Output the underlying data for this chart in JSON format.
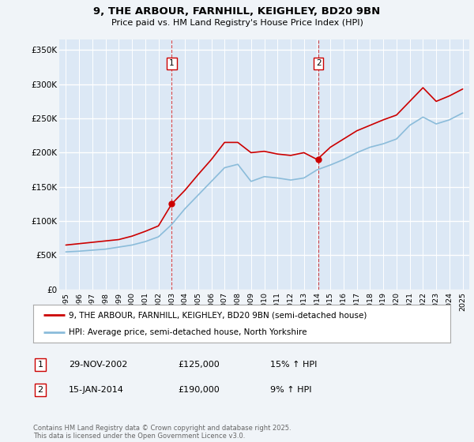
{
  "title_line1": "9, THE ARBOUR, FARNHILL, KEIGHLEY, BD20 9BN",
  "title_line2": "Price paid vs. HM Land Registry's House Price Index (HPI)",
  "ylabel_ticks": [
    "£0",
    "£50K",
    "£100K",
    "£150K",
    "£200K",
    "£250K",
    "£300K",
    "£350K"
  ],
  "ylabel_values": [
    0,
    50000,
    100000,
    150000,
    200000,
    250000,
    300000,
    350000
  ],
  "ylim": [
    0,
    365000
  ],
  "bg_color": "#f0f4f8",
  "plot_bg_color": "#dce8f5",
  "grid_color": "#ffffff",
  "red_line_color": "#cc0000",
  "blue_line_color": "#8bbcda",
  "sale1_date_idx": 8.0,
  "sale1_value": 125000,
  "sale1_label": "1",
  "sale1_date_str": "29-NOV-2002",
  "sale1_price_str": "£125,000",
  "sale1_hpi_str": "15% ↑ HPI",
  "sale2_date_idx": 19.1,
  "sale2_value": 190000,
  "sale2_label": "2",
  "sale2_date_str": "15-JAN-2014",
  "sale2_price_str": "£190,000",
  "sale2_hpi_str": "9% ↑ HPI",
  "legend_label_red": "9, THE ARBOUR, FARNHILL, KEIGHLEY, BD20 9BN (semi-detached house)",
  "legend_label_blue": "HPI: Average price, semi-detached house, North Yorkshire",
  "footnote": "Contains HM Land Registry data © Crown copyright and database right 2025.\nThis data is licensed under the Open Government Licence v3.0.",
  "x_labels": [
    "1995",
    "1996",
    "1997",
    "1998",
    "1999",
    "2000",
    "2001",
    "2002",
    "2003",
    "2004",
    "2005",
    "2006",
    "2007",
    "2008",
    "2009",
    "2010",
    "2011",
    "2012",
    "2013",
    "2014",
    "2015",
    "2016",
    "2017",
    "2018",
    "2019",
    "2020",
    "2021",
    "2022",
    "2023",
    "2024",
    "2025"
  ],
  "hpi_values": [
    55000,
    56000,
    57500,
    59000,
    62000,
    65000,
    70000,
    77000,
    95000,
    118000,
    138000,
    158000,
    178000,
    183000,
    158000,
    165000,
    163000,
    160000,
    163000,
    175000,
    182000,
    190000,
    200000,
    208000,
    213000,
    220000,
    240000,
    252000,
    242000,
    248000,
    258000
  ],
  "red_values": [
    65000,
    67000,
    69000,
    71000,
    73000,
    78000,
    85000,
    93000,
    125000,
    145000,
    168000,
    190000,
    215000,
    215000,
    200000,
    202000,
    198000,
    196000,
    200000,
    190000,
    208000,
    220000,
    232000,
    240000,
    248000,
    255000,
    275000,
    295000,
    275000,
    283000,
    293000
  ]
}
